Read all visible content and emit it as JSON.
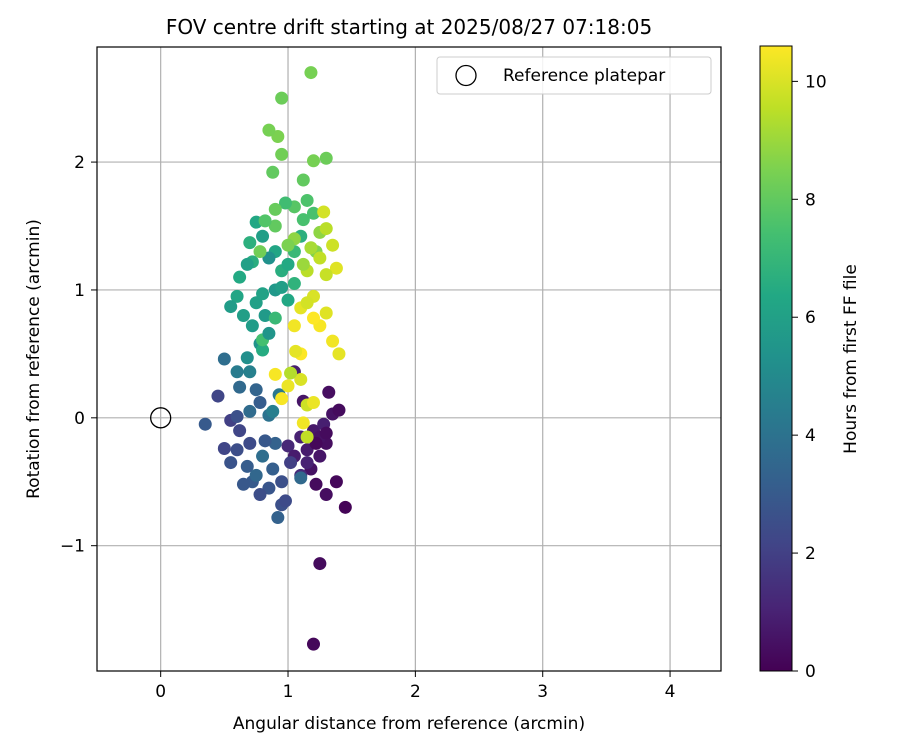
{
  "chart_data": {
    "type": "scatter",
    "title": "FOV centre drift starting at 2025/08/27 07:18:05",
    "xlabel": "Angular distance from reference (arcmin)",
    "ylabel": "Rotation from reference (arcmin)",
    "xlim": [
      -0.5,
      4.4
    ],
    "ylim": [
      -1.98,
      2.9
    ],
    "xticks": [
      0,
      1,
      2,
      3,
      4
    ],
    "yticks": [
      -1,
      0,
      1,
      2
    ],
    "xtick_labels": [
      "0",
      "1",
      "2",
      "3",
      "4"
    ],
    "ytick_labels": [
      "−1",
      "0",
      "1",
      "2"
    ],
    "grid": true,
    "legend": {
      "position": "top-right",
      "label": "Reference platepar"
    },
    "reference_point": {
      "x": 0,
      "y": 0
    },
    "colorbar": {
      "label": "Hours from first FF file",
      "colormap": "viridis",
      "range": [
        0,
        10.6
      ],
      "ticks": [
        0,
        2,
        4,
        6,
        8,
        10
      ],
      "tick_labels": [
        "0",
        "2",
        "4",
        "6",
        "8",
        "10"
      ]
    },
    "points": [
      [
        1.2,
        -1.77,
        0.2
      ],
      [
        1.25,
        -1.14,
        0.3
      ],
      [
        1.45,
        -0.7,
        0.1
      ],
      [
        1.38,
        -0.5,
        0.2
      ],
      [
        1.3,
        -0.6,
        0.4
      ],
      [
        1.22,
        -0.52,
        0.3
      ],
      [
        1.18,
        -0.4,
        0.5
      ],
      [
        1.25,
        -0.3,
        0.6
      ],
      [
        1.3,
        -0.2,
        0.4
      ],
      [
        1.15,
        -0.25,
        0.8
      ],
      [
        1.1,
        -0.15,
        1.0
      ],
      [
        1.2,
        -0.1,
        0.7
      ],
      [
        1.28,
        -0.05,
        0.9
      ],
      [
        1.35,
        0.03,
        0.5
      ],
      [
        1.4,
        0.06,
        0.3
      ],
      [
        1.32,
        0.2,
        0.4
      ],
      [
        1.12,
        0.13,
        0.6
      ],
      [
        1.05,
        0.36,
        0.9
      ],
      [
        1.0,
        -0.22,
        1.2
      ],
      [
        1.05,
        -0.3,
        0.8
      ],
      [
        1.15,
        -0.35,
        1.0
      ],
      [
        1.25,
        -0.15,
        0.5
      ],
      [
        1.3,
        -0.12,
        0.3
      ],
      [
        1.1,
        -0.45,
        1.3
      ],
      [
        1.22,
        -0.2,
        0.2
      ],
      [
        0.95,
        -0.68,
        2.6
      ],
      [
        0.92,
        -0.78,
        3.3
      ],
      [
        0.98,
        -0.65,
        2.4
      ],
      [
        0.85,
        -0.55,
        2.8
      ],
      [
        0.78,
        -0.6,
        2.5
      ],
      [
        0.72,
        -0.5,
        3.0
      ],
      [
        0.65,
        -0.52,
        2.9
      ],
      [
        0.55,
        -0.35,
        2.7
      ],
      [
        0.5,
        -0.24,
        2.2
      ],
      [
        0.6,
        -0.25,
        2.5
      ],
      [
        0.68,
        -0.38,
        3.1
      ],
      [
        0.75,
        -0.45,
        3.5
      ],
      [
        0.8,
        -0.3,
        3.8
      ],
      [
        0.88,
        -0.4,
        3.2
      ],
      [
        0.95,
        -0.5,
        2.6
      ],
      [
        1.02,
        -0.35,
        2.0
      ],
      [
        1.1,
        -0.47,
        3.6
      ],
      [
        0.9,
        -0.2,
        3.3
      ],
      [
        0.82,
        -0.18,
        2.9
      ],
      [
        0.7,
        -0.2,
        2.4
      ],
      [
        0.62,
        -0.1,
        2.2
      ],
      [
        0.55,
        -0.02,
        2.0
      ],
      [
        0.6,
        0.01,
        2.6
      ],
      [
        0.7,
        0.05,
        3.7
      ],
      [
        0.78,
        0.12,
        3.1
      ],
      [
        0.75,
        0.22,
        3.4
      ],
      [
        0.85,
        0.02,
        4.0
      ],
      [
        0.88,
        0.05,
        4.5
      ],
      [
        0.93,
        0.18,
        4.2
      ],
      [
        0.62,
        0.24,
        3.6
      ],
      [
        0.45,
        0.17,
        2.2
      ],
      [
        0.35,
        -0.05,
        3.0
      ],
      [
        0.5,
        0.46,
        3.8
      ],
      [
        0.6,
        0.36,
        4.4
      ],
      [
        0.7,
        0.36,
        4.6
      ],
      [
        0.68,
        0.47,
        5.2
      ],
      [
        0.78,
        0.58,
        5.4
      ],
      [
        0.72,
        0.72,
        5.8
      ],
      [
        0.8,
        0.53,
        6.5
      ],
      [
        0.8,
        0.61,
        7.4
      ],
      [
        0.82,
        0.8,
        5.7
      ],
      [
        0.85,
        0.66,
        5.5
      ],
      [
        0.75,
        0.9,
        6.0
      ],
      [
        0.65,
        0.8,
        5.9
      ],
      [
        0.6,
        0.95,
        6.2
      ],
      [
        0.55,
        0.87,
        5.8
      ],
      [
        0.62,
        1.1,
        6.4
      ],
      [
        0.72,
        1.22,
        6.6
      ],
      [
        0.8,
        0.97,
        6.1
      ],
      [
        0.9,
        1.0,
        5.6
      ],
      [
        0.95,
        1.02,
        5.9
      ],
      [
        1.0,
        0.92,
        6.3
      ],
      [
        1.05,
        1.05,
        6.8
      ],
      [
        0.95,
        1.15,
        6.6
      ],
      [
        0.9,
        1.3,
        6.2
      ],
      [
        0.85,
        1.25,
        5.3
      ],
      [
        0.8,
        1.42,
        5.9
      ],
      [
        0.75,
        1.53,
        6.3
      ],
      [
        0.7,
        1.37,
        6.7
      ],
      [
        0.68,
        1.2,
        6.0
      ],
      [
        1.0,
        1.2,
        6.4
      ],
      [
        1.05,
        1.3,
        7.1
      ],
      [
        1.1,
        1.42,
        6.7
      ],
      [
        1.12,
        1.55,
        7.5
      ],
      [
        1.15,
        1.7,
        7.6
      ],
      [
        1.05,
        1.65,
        7.8
      ],
      [
        0.98,
        1.68,
        7.3
      ],
      [
        0.9,
        1.63,
        8.1
      ],
      [
        0.88,
        1.92,
        8.0
      ],
      [
        0.95,
        2.06,
        8.3
      ],
      [
        0.92,
        2.2,
        8.5
      ],
      [
        0.85,
        2.25,
        8.4
      ],
      [
        0.95,
        2.5,
        8.2
      ],
      [
        1.18,
        2.7,
        8.4
      ],
      [
        1.2,
        2.01,
        8.4
      ],
      [
        1.3,
        2.03,
        8.2
      ],
      [
        1.12,
        1.86,
        8.0
      ],
      [
        1.2,
        1.6,
        7.5
      ],
      [
        1.25,
        1.45,
        8.8
      ],
      [
        1.22,
        1.3,
        8.6
      ],
      [
        1.15,
        1.15,
        9.5
      ],
      [
        1.2,
        0.95,
        10.0
      ],
      [
        1.1,
        0.86,
        10.2
      ],
      [
        1.05,
        0.72,
        10.4
      ],
      [
        1.1,
        0.5,
        10.6
      ],
      [
        1.0,
        0.25,
        10.3
      ],
      [
        0.95,
        0.15,
        10.5
      ],
      [
        1.1,
        0.3,
        10.0
      ],
      [
        1.15,
        0.1,
        9.8
      ],
      [
        1.2,
        0.12,
        10.3
      ],
      [
        1.25,
        0.72,
        10.5
      ],
      [
        1.35,
        0.6,
        10.4
      ],
      [
        1.4,
        0.5,
        10.2
      ],
      [
        1.38,
        1.17,
        10.1
      ],
      [
        1.35,
        1.35,
        9.8
      ],
      [
        1.3,
        1.48,
        9.5
      ],
      [
        1.28,
        1.61,
        9.9
      ],
      [
        1.25,
        1.25,
        9.6
      ],
      [
        1.18,
        1.33,
        9.2
      ],
      [
        1.12,
        1.2,
        9.0
      ],
      [
        1.05,
        1.4,
        8.8
      ],
      [
        1.0,
        1.35,
        8.5
      ],
      [
        0.9,
        1.5,
        8.0
      ],
      [
        0.82,
        1.54,
        7.7
      ],
      [
        0.78,
        1.3,
        8.3
      ],
      [
        1.3,
        1.12,
        9.7
      ],
      [
        1.15,
        0.9,
        9.9
      ],
      [
        1.2,
        0.78,
        10.6
      ],
      [
        1.3,
        0.82,
        10.1
      ],
      [
        0.9,
        0.34,
        10.5
      ],
      [
        1.12,
        -0.04,
        10.4
      ],
      [
        1.15,
        -0.15,
        9.6
      ],
      [
        1.02,
        0.35,
        9.4
      ],
      [
        1.06,
        0.52,
        10.2
      ],
      [
        0.9,
        0.78,
        7.1
      ]
    ]
  }
}
